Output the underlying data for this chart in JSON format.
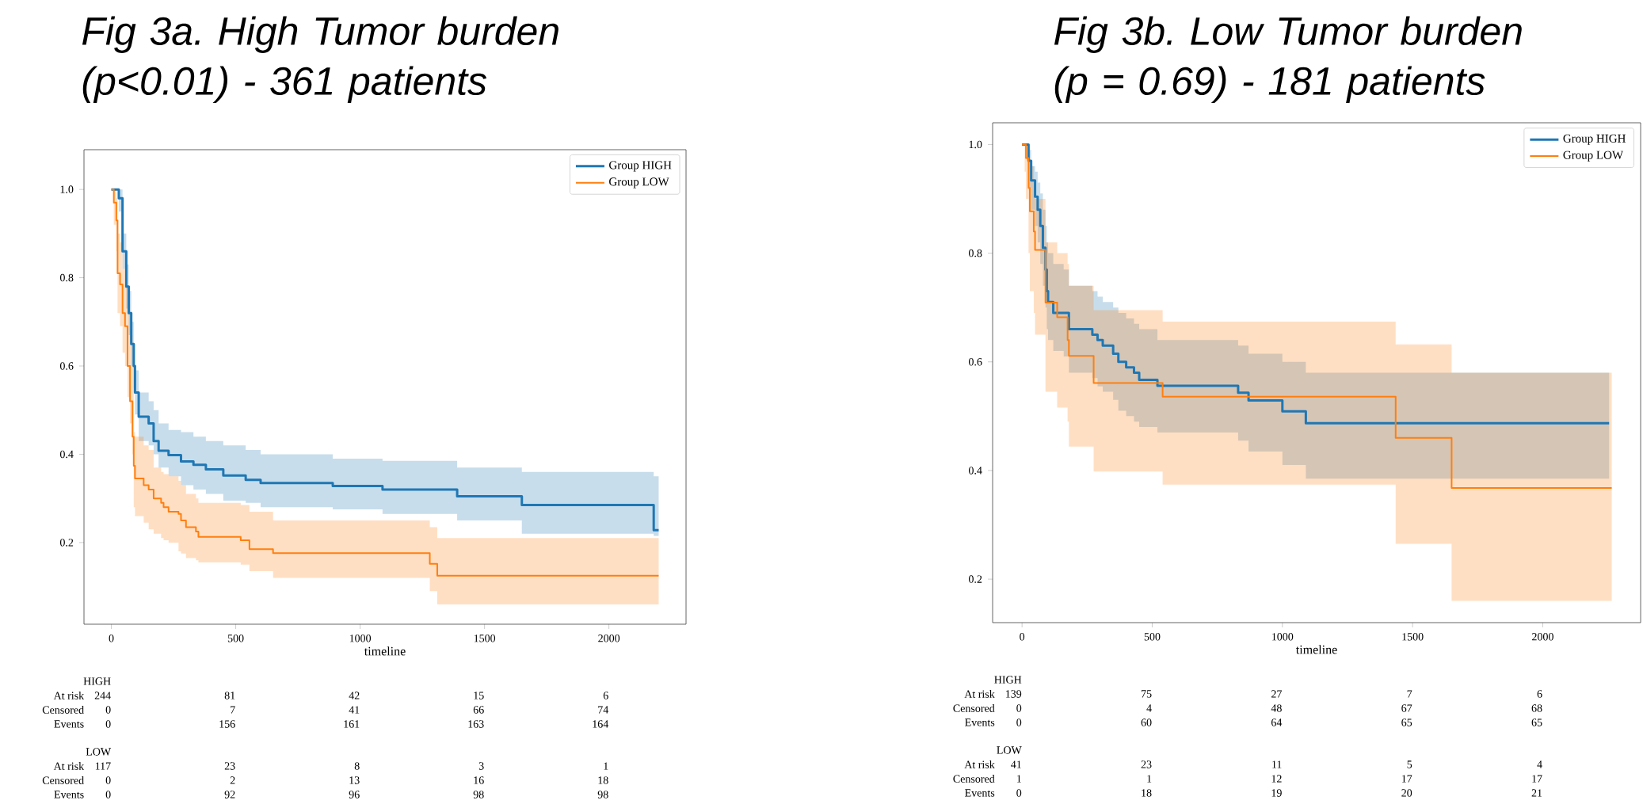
{
  "chart_data": [
    {
      "type": "step",
      "title": "Fig 3a. High Tumor burden (p<0.01) - 361 patients",
      "xlabel": "timeline",
      "xlim": [
        -110,
        2310
      ],
      "xticks": [
        0,
        500,
        1000,
        1500,
        2000
      ],
      "ylim": [
        0.015,
        1.09
      ],
      "yticks": [
        0.2,
        0.4,
        0.6,
        0.8,
        {
          "value": 1.0,
          "label": "1.0"
        }
      ],
      "legend": "top right",
      "series": [
        {
          "name": "Group HIGH",
          "color": "#1f77b4",
          "x": [
            0,
            20,
            30,
            45,
            60,
            70,
            80,
            90,
            95,
            110,
            150,
            170,
            190,
            230,
            280,
            330,
            380,
            450,
            540,
            600,
            890,
            1090,
            1390,
            1650,
            2180,
            2200
          ],
          "values": [
            1.0,
            1.0,
            0.98,
            0.86,
            0.78,
            0.72,
            0.65,
            0.6,
            0.54,
            0.485,
            0.47,
            0.43,
            0.408,
            0.398,
            0.384,
            0.376,
            0.366,
            0.352,
            0.342,
            0.335,
            0.328,
            0.32,
            0.305,
            0.285,
            0.228,
            0.228
          ],
          "upper": [
            1.0,
            1.0,
            1.0,
            0.9,
            0.83,
            0.77,
            0.7,
            0.65,
            0.59,
            0.54,
            0.52,
            0.5,
            0.47,
            0.455,
            0.45,
            0.44,
            0.43,
            0.42,
            0.41,
            0.4,
            0.39,
            0.385,
            0.37,
            0.36,
            0.35,
            0.35
          ],
          "lower": [
            1.0,
            1.0,
            0.95,
            0.82,
            0.73,
            0.67,
            0.6,
            0.55,
            0.49,
            0.43,
            0.42,
            0.4,
            0.37,
            0.35,
            0.33,
            0.32,
            0.31,
            0.295,
            0.29,
            0.28,
            0.275,
            0.265,
            0.25,
            0.22,
            0.215,
            0.215
          ]
        },
        {
          "name": "Group LOW",
          "color": "#ff7f0e",
          "x": [
            0,
            10,
            20,
            25,
            35,
            45,
            55,
            65,
            75,
            85,
            90,
            95,
            130,
            150,
            170,
            200,
            210,
            230,
            270,
            280,
            300,
            340,
            350,
            520,
            555,
            650,
            1280,
            1310,
            2200
          ],
          "values": [
            1.0,
            0.97,
            0.93,
            0.81,
            0.785,
            0.72,
            0.69,
            0.6,
            0.52,
            0.44,
            0.374,
            0.345,
            0.33,
            0.32,
            0.3,
            0.29,
            0.28,
            0.27,
            0.265,
            0.25,
            0.235,
            0.225,
            0.213,
            0.205,
            0.185,
            0.176,
            0.152,
            0.125,
            0.125
          ],
          "upper": [
            1.0,
            1.0,
            0.98,
            0.9,
            0.88,
            0.82,
            0.78,
            0.74,
            0.67,
            0.6,
            0.45,
            0.44,
            0.42,
            0.41,
            0.37,
            0.36,
            0.355,
            0.35,
            0.34,
            0.33,
            0.31,
            0.3,
            0.29,
            0.285,
            0.27,
            0.25,
            0.235,
            0.21,
            0.21
          ],
          "lower": [
            1.0,
            0.92,
            0.86,
            0.72,
            0.69,
            0.63,
            0.6,
            0.53,
            0.47,
            0.4,
            0.28,
            0.26,
            0.245,
            0.23,
            0.22,
            0.21,
            0.205,
            0.2,
            0.18,
            0.175,
            0.165,
            0.16,
            0.155,
            0.15,
            0.135,
            0.12,
            0.09,
            0.06,
            0.06
          ]
        }
      ],
      "annotations": [
        "HIGH",
        "At risk",
        "244",
        "81",
        "42",
        "15",
        "6",
        "Censored",
        "0",
        "7",
        "41",
        "66",
        "74",
        "Events",
        "0",
        "156",
        "161",
        "163",
        "164",
        "LOW",
        "At risk",
        "117",
        "23",
        "8",
        "3",
        "1",
        "Censored",
        "0",
        "2",
        "13",
        "16",
        "18",
        "Events",
        "0",
        "92",
        "96",
        "98",
        "98"
      ]
    },
    {
      "type": "step",
      "title": "Fig 3b. Low Tumor burden (p = 0.69) - 181 patients",
      "xlabel": "timeline",
      "xlim": [
        -113,
        2376
      ],
      "xticks": [
        0,
        500,
        1000,
        1500,
        2000
      ],
      "ylim": [
        0.12,
        1.04
      ],
      "yticks": [
        0.2,
        0.4,
        0.6,
        0.8,
        {
          "value": 1.0,
          "label": "1.0"
        }
      ],
      "legend": "top right",
      "series": [
        {
          "name": "Group HIGH",
          "color": "#1f77b4",
          "x": [
            0,
            20,
            25,
            35,
            50,
            60,
            70,
            80,
            90,
            95,
            100,
            120,
            160,
            180,
            270,
            290,
            310,
            350,
            370,
            400,
            430,
            450,
            520,
            830,
            870,
            1000,
            1090,
            2255
          ],
          "values": [
            1.0,
            1.0,
            0.97,
            0.934,
            0.904,
            0.88,
            0.85,
            0.81,
            0.77,
            0.73,
            0.71,
            0.69,
            0.69,
            0.66,
            0.65,
            0.64,
            0.63,
            0.615,
            0.6,
            0.59,
            0.58,
            0.567,
            0.556,
            0.543,
            0.529,
            0.509,
            0.487,
            0.487
          ],
          "upper": [
            1.0,
            1.0,
            0.99,
            0.96,
            0.95,
            0.93,
            0.91,
            0.88,
            0.85,
            0.82,
            0.8,
            0.78,
            0.77,
            0.74,
            0.73,
            0.72,
            0.71,
            0.7,
            0.69,
            0.68,
            0.67,
            0.66,
            0.64,
            0.63,
            0.615,
            0.6,
            0.58,
            0.58
          ],
          "lower": [
            1.0,
            1.0,
            0.92,
            0.88,
            0.85,
            0.82,
            0.78,
            0.74,
            0.7,
            0.66,
            0.64,
            0.62,
            0.61,
            0.58,
            0.57,
            0.555,
            0.545,
            0.53,
            0.51,
            0.5,
            0.49,
            0.48,
            0.47,
            0.455,
            0.435,
            0.41,
            0.385,
            0.385
          ]
        },
        {
          "name": "Group LOW",
          "color": "#ff7f0e",
          "x": [
            0,
            10,
            15,
            25,
            30,
            45,
            50,
            90,
            135,
            175,
            180,
            275,
            540,
            1435,
            1650,
            2265
          ],
          "values": [
            1.0,
            1.0,
            0.975,
            0.92,
            0.877,
            0.84,
            0.806,
            0.709,
            0.682,
            0.64,
            0.611,
            0.561,
            0.536,
            0.46,
            0.368,
            0.368
          ],
          "upper": [
            1.0,
            1.0,
            1.0,
            0.98,
            0.96,
            0.92,
            0.9,
            0.82,
            0.8,
            0.78,
            0.74,
            0.695,
            0.674,
            0.632,
            0.58,
            0.58
          ],
          "lower": [
            1.0,
            0.95,
            0.9,
            0.8,
            0.73,
            0.69,
            0.65,
            0.545,
            0.516,
            0.49,
            0.444,
            0.398,
            0.374,
            0.265,
            0.16,
            0.16
          ]
        }
      ],
      "annotations": [
        "HIGH",
        "At risk",
        "139",
        "75",
        "27",
        "7",
        "6",
        "Censored",
        "0",
        "4",
        "48",
        "67",
        "68",
        "Events",
        "0",
        "60",
        "64",
        "65",
        "65",
        "LOW",
        "At risk",
        "41",
        "23",
        "11",
        "5",
        "4",
        "Censored",
        "1",
        "1",
        "12",
        "17",
        "17",
        "Events",
        "0",
        "18",
        "19",
        "20",
        "21"
      ]
    }
  ]
}
